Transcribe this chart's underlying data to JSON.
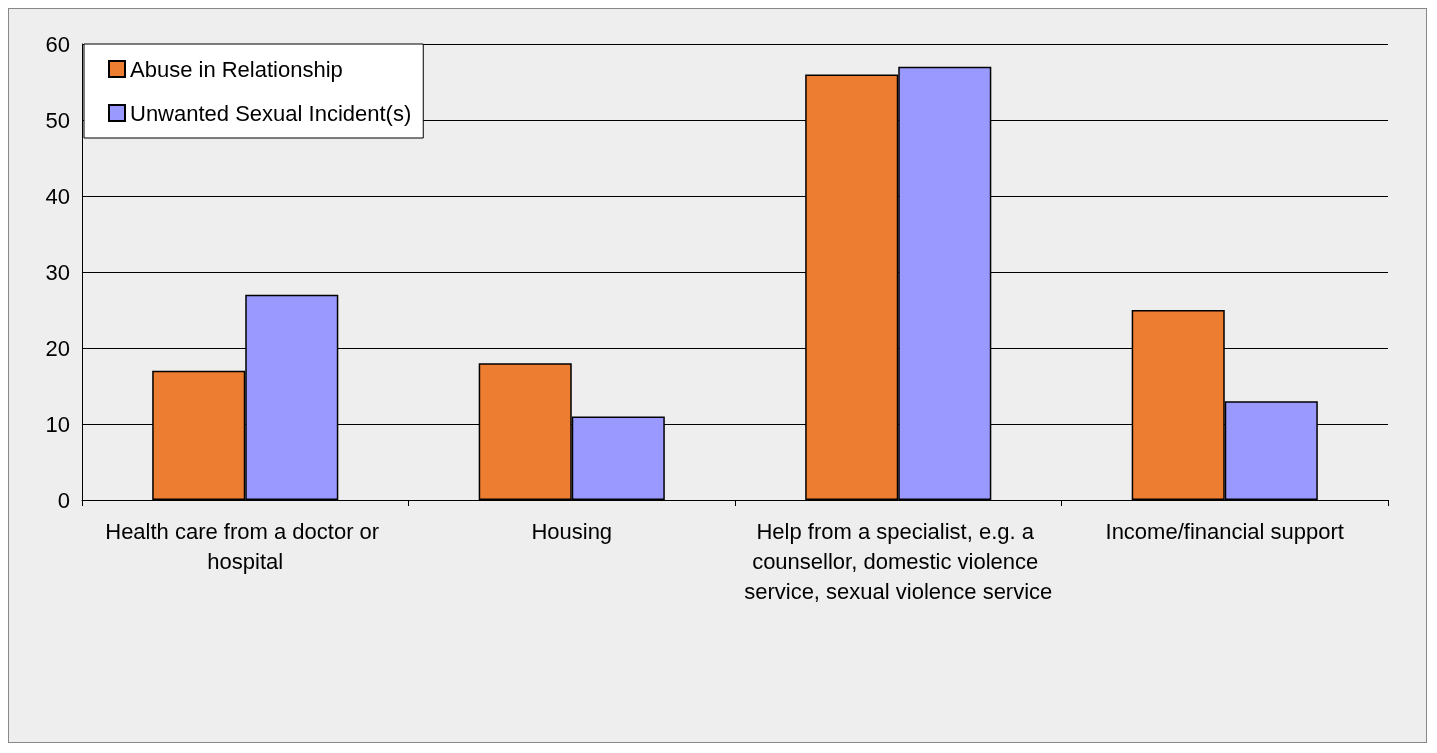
{
  "chart_data": {
    "type": "bar",
    "categories": [
      "Health care from a doctor or hospital",
      "Housing",
      "Help from a specialist, e.g. a counsellor, domestic violence service, sexual violence service",
      "Income/financial support"
    ],
    "series": [
      {
        "name": "Abuse in Relationship",
        "color": "#ed7d31",
        "values": [
          17,
          18,
          56,
          25
        ]
      },
      {
        "name": "Unwanted Sexual Incident(s)",
        "color": "#9999ff",
        "values": [
          27,
          11,
          57,
          13
        ]
      }
    ],
    "ylim": [
      0,
      60
    ],
    "yticks": [
      0,
      10,
      20,
      30,
      40,
      50,
      60
    ],
    "grid": "y",
    "legend": "top left"
  }
}
